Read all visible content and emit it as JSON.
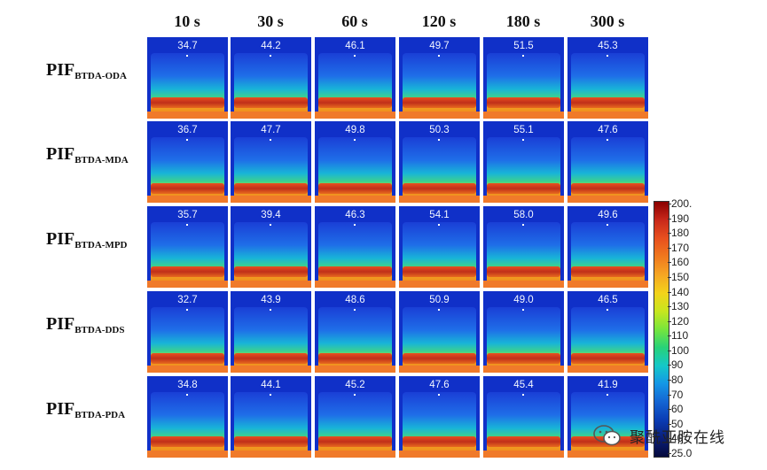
{
  "times": [
    "10 s",
    "30 s",
    "60 s",
    "120 s",
    "180 s",
    "300 s"
  ],
  "rows": [
    {
      "label_main": "PIF",
      "label_sub": "BTDA-ODA",
      "values": [
        "34.7",
        "44.2",
        "46.1",
        "49.7",
        "51.5",
        "45.3"
      ]
    },
    {
      "label_main": "PIF",
      "label_sub": "BTDA-MDA",
      "values": [
        "36.7",
        "47.7",
        "49.8",
        "50.3",
        "55.1",
        "47.6"
      ]
    },
    {
      "label_main": "PIF",
      "label_sub": "BTDA-MPD",
      "values": [
        "35.7",
        "39.4",
        "46.3",
        "54.1",
        "58.0",
        "49.6"
      ]
    },
    {
      "label_main": "PIF",
      "label_sub": "BTDA-DDS",
      "values": [
        "32.7",
        "43.9",
        "48.6",
        "50.9",
        "49.0",
        "46.5"
      ]
    },
    {
      "label_main": "PIF",
      "label_sub": "BTDA-PDA",
      "values": [
        "34.8",
        "44.1",
        "45.2",
        "47.6",
        "45.4",
        "41.9"
      ]
    }
  ],
  "colorbar": {
    "ticks": [
      "200.",
      "190",
      "180",
      "170",
      "160",
      "150",
      "140",
      "130",
      "120",
      "110",
      "100",
      "90",
      "80",
      "70",
      "60",
      "50",
      "40",
      "25.0"
    ],
    "colors": [
      "#8b0000",
      "#c8281a",
      "#e8501e",
      "#f0781e",
      "#f5a623",
      "#f3d21a",
      "#c8e61e",
      "#78e63c",
      "#28d278",
      "#14c8c8",
      "#1496e6",
      "#1464d2",
      "#0a3cb4",
      "#0a1e78",
      "#050a3c"
    ]
  },
  "watermark": {
    "text": "聚酰亚胺在线",
    "icon": "wechat-icon"
  }
}
